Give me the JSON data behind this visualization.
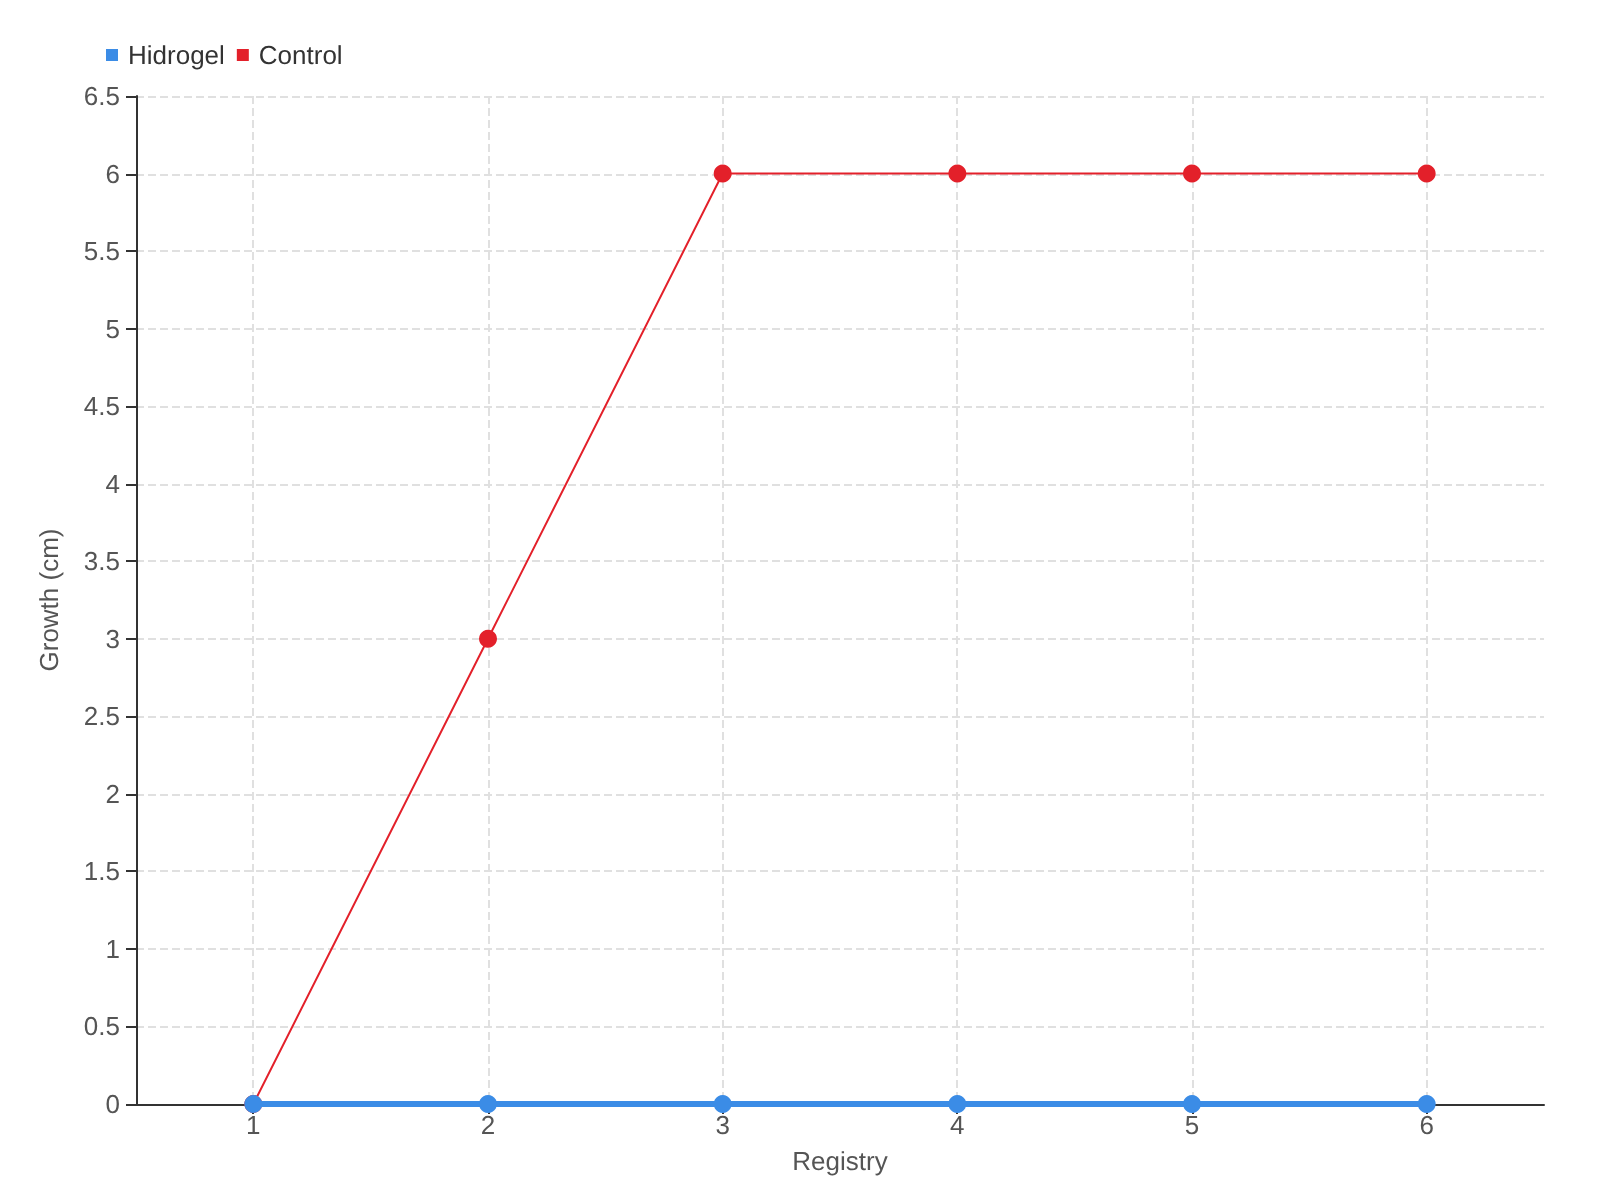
{
  "chart_data": {
    "type": "line",
    "xlabel": "Registry",
    "ylabel": "Growth (cm)",
    "x": [
      1,
      2,
      3,
      4,
      5,
      6
    ],
    "series": [
      {
        "name": "Hidrogel",
        "color": "#3b8ce6",
        "values": [
          0,
          0,
          0,
          0,
          0,
          0
        ]
      },
      {
        "name": "Control",
        "color": "#e3202a",
        "values": [
          0,
          3,
          6,
          6,
          6,
          6
        ]
      }
    ],
    "xlim": [
      0.5,
      6.5
    ],
    "xticks": [
      1,
      2,
      3,
      4,
      5,
      6
    ],
    "ylim": [
      0,
      6.5
    ],
    "yticks": [
      0,
      0.5,
      1,
      1.5,
      2,
      2.5,
      3,
      3.5,
      4,
      4.5,
      5,
      5.5,
      6,
      6.5
    ],
    "grid": true,
    "legend": "top left",
    "marker": "circle",
    "line_style": "solid"
  }
}
